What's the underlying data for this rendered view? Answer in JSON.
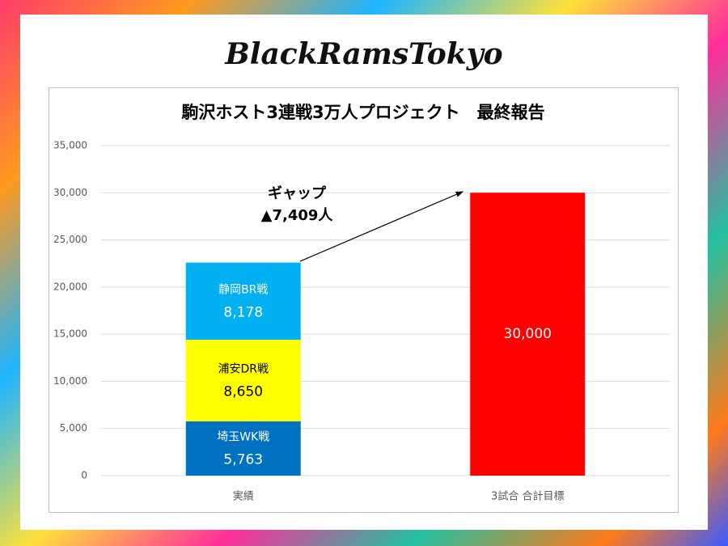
{
  "logo": "BlackRamsTokyo",
  "chart_data": {
    "type": "stacked_bar",
    "title": "駒沢ホスト3連戦3万人プロジェクト　最終報告",
    "categories": [
      "実績",
      "3試合 合計目標"
    ],
    "series": [
      {
        "name": "埼玉WK戦",
        "color": "#0070c0",
        "values": [
          5763,
          null
        ],
        "value_labels": [
          "5,763",
          null
        ]
      },
      {
        "name": "浦安DR戦",
        "color": "#ffff00",
        "values": [
          8650,
          null
        ],
        "value_labels": [
          "8,650",
          null
        ]
      },
      {
        "name": "静岡BR戦",
        "color": "#00b0f0",
        "values": [
          8178,
          null
        ],
        "value_labels": [
          "8,178",
          null
        ]
      },
      {
        "color": "#ff0000",
        "values": [
          null,
          30000
        ],
        "value_labels": [
          null,
          "30,000"
        ]
      }
    ],
    "annotations": [
      "ギャップ",
      "▲7,409人"
    ],
    "ylim": [
      0,
      35000
    ],
    "yticks": [
      0,
      {
        "value": 5000,
        "label": "5,000"
      },
      {
        "value": 10000,
        "label": "10,000"
      },
      {
        "value": 15000,
        "label": "15,000"
      },
      {
        "value": 20000,
        "label": "20,000"
      },
      {
        "value": 25000,
        "label": "25,000"
      },
      {
        "value": 30000,
        "label": "30,000"
      },
      {
        "value": 35000,
        "label": "35,000"
      }
    ],
    "grid": true
  }
}
